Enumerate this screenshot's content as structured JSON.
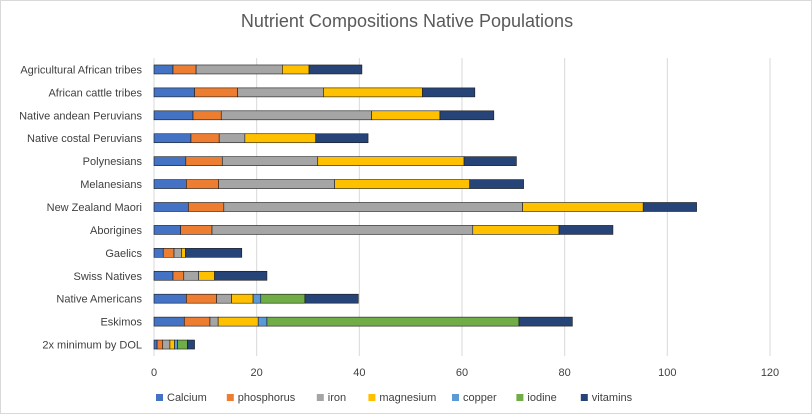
{
  "chart_data": {
    "type": "bar",
    "orientation": "horizontal",
    "stacked": true,
    "title": "Nutrient Compositions Native Populations",
    "xlabel": "",
    "ylabel": "",
    "xlim": [
      0,
      120
    ],
    "xticks": [
      0,
      20,
      40,
      60,
      80,
      100,
      120
    ],
    "grid": true,
    "legend_position": "bottom",
    "categories": [
      "Agricultural African tribes",
      "African cattle tribes",
      "Native andean Peruvians",
      "Native costal Peruvians",
      "Polynesians",
      "Melanesians",
      "New Zealand Maori",
      "Aborigines",
      "Gaelics",
      "Swiss Natives",
      "Native Americans",
      "Eskimos",
      "2x minimum by DOL"
    ],
    "series": [
      {
        "name": "Calcium",
        "color": "#4472C4",
        "values": [
          3.7,
          7.9,
          7.6,
          7.2,
          6.2,
          6.3,
          6.7,
          5.2,
          1.8,
          3.7,
          6.3,
          5.9,
          0.6
        ]
      },
      {
        "name": "phosphorus",
        "color": "#ED7D31",
        "values": [
          4.5,
          8.4,
          5.5,
          5.5,
          7.1,
          6.3,
          6.9,
          6.1,
          2.1,
          2.1,
          5.9,
          5.0,
          1.1
        ]
      },
      {
        "name": "iron",
        "color": "#A5A5A5",
        "values": [
          16.8,
          16.7,
          29.3,
          5.0,
          18.6,
          22.6,
          58.2,
          50.8,
          1.5,
          2.9,
          2.9,
          1.6,
          1.4
        ]
      },
      {
        "name": "magnesium",
        "color": "#FFC000",
        "values": [
          5.2,
          19.3,
          13.3,
          13.8,
          28.5,
          26.3,
          23.5,
          16.8,
          0.7,
          3.1,
          4.2,
          7.8,
          0.9
        ]
      },
      {
        "name": "copper",
        "color": "#5B9BD5",
        "values": [
          0,
          0,
          0,
          0,
          0,
          0,
          0,
          0,
          0,
          0,
          1.5,
          1.7,
          0.6
        ]
      },
      {
        "name": "iodine",
        "color": "#70AD47",
        "values": [
          0,
          0,
          0,
          0,
          0,
          0,
          0,
          0,
          0,
          0,
          8.6,
          49.1,
          1.9
        ]
      },
      {
        "name": "vitamins",
        "color": "#264478",
        "values": [
          10.3,
          10.2,
          10.5,
          10.2,
          10.2,
          10.5,
          10.4,
          10.5,
          11.0,
          10.2,
          10.4,
          10.4,
          1.4
        ]
      }
    ]
  }
}
